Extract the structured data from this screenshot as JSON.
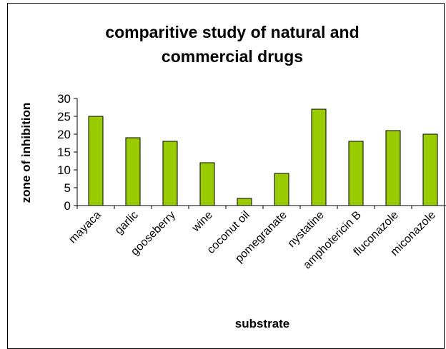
{
  "chart_data": {
    "type": "bar",
    "title_lines": [
      "comparitive study of natural and",
      "commercial drugs"
    ],
    "xlabel": "substrate",
    "ylabel": "zone of inhibition",
    "categories": [
      "mayaca",
      "garlic",
      "gooseberry",
      "wine",
      "coconut oil",
      "pomegranate",
      "nystatine",
      "amphotericin B",
      "fluconazole",
      "miconazole"
    ],
    "values": [
      25,
      19,
      18,
      12,
      2,
      9,
      27,
      18,
      21,
      20
    ],
    "ylim": [
      0,
      30
    ],
    "yticks": [
      "0",
      "5",
      "10",
      "15",
      "20",
      "25",
      "30"
    ],
    "grid": false,
    "legend": false,
    "bar_color": "#99cc00",
    "bar_edge_color": "#000000"
  }
}
